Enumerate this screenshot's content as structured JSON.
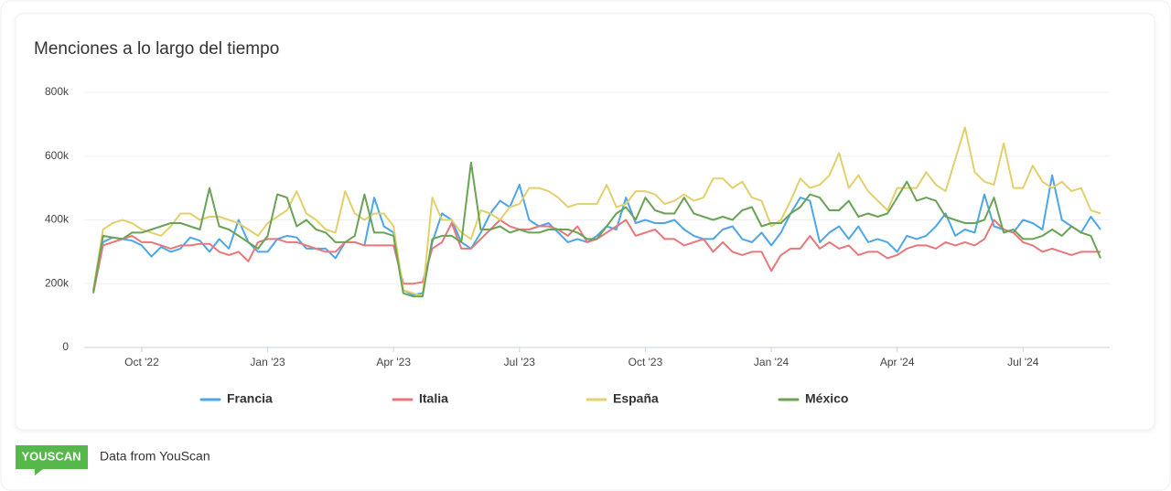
{
  "chart_data": {
    "type": "line",
    "title": "Menciones a lo largo del tiempo",
    "categories": [
      null,
      null,
      null,
      null,
      null,
      "Oct '22",
      null,
      null,
      null,
      null,
      null,
      null,
      null,
      null,
      null,
      null,
      null,
      null,
      "Jan '23",
      null,
      null,
      null,
      null,
      null,
      null,
      null,
      null,
      null,
      null,
      null,
      null,
      "Apr '23",
      null,
      null,
      null,
      null,
      null,
      null,
      null,
      null,
      null,
      null,
      null,
      null,
      "Jul '23",
      null,
      null,
      null,
      null,
      null,
      null,
      null,
      null,
      null,
      null,
      null,
      null,
      "Oct '23",
      null,
      null,
      null,
      null,
      null,
      null,
      null,
      null,
      null,
      null,
      null,
      null,
      "Jan '24",
      null,
      null,
      null,
      null,
      null,
      null,
      null,
      null,
      null,
      null,
      null,
      null,
      "Apr '24",
      null,
      null,
      null,
      null,
      null,
      null,
      null,
      null,
      null,
      null,
      null,
      null,
      "Jul '24",
      null,
      null,
      null,
      null,
      null,
      null,
      null,
      null
    ],
    "series": [
      {
        "name": "Francia",
        "color": "#4da6e8",
        "values": [
          170000,
          330000,
          345000,
          340000,
          335000,
          320000,
          285000,
          315000,
          300000,
          310000,
          345000,
          335000,
          300000,
          340000,
          310000,
          400000,
          330000,
          300000,
          300000,
          340000,
          350000,
          345000,
          310000,
          310000,
          310000,
          280000,
          330000,
          330000,
          320000,
          470000,
          380000,
          360000,
          180000,
          165000,
          170000,
          330000,
          420000,
          400000,
          330000,
          310000,
          360000,
          420000,
          460000,
          440000,
          510000,
          400000,
          380000,
          390000,
          360000,
          330000,
          340000,
          330000,
          350000,
          380000,
          370000,
          470000,
          390000,
          400000,
          390000,
          390000,
          400000,
          370000,
          350000,
          340000,
          340000,
          370000,
          380000,
          340000,
          330000,
          360000,
          320000,
          360000,
          420000,
          470000,
          460000,
          330000,
          360000,
          380000,
          340000,
          380000,
          330000,
          340000,
          330000,
          300000,
          350000,
          340000,
          350000,
          380000,
          420000,
          350000,
          370000,
          360000,
          480000,
          380000,
          370000,
          360000,
          400000,
          390000,
          370000,
          540000,
          400000,
          380000,
          360000,
          410000,
          370000
        ]
      },
      {
        "name": "Italia",
        "color": "#e8777a",
        "values": [
          170000,
          320000,
          330000,
          340000,
          350000,
          330000,
          330000,
          320000,
          310000,
          320000,
          320000,
          325000,
          325000,
          300000,
          290000,
          300000,
          270000,
          330000,
          340000,
          340000,
          330000,
          330000,
          320000,
          310000,
          300000,
          300000,
          330000,
          330000,
          320000,
          320000,
          320000,
          320000,
          200000,
          200000,
          205000,
          310000,
          330000,
          390000,
          310000,
          310000,
          340000,
          370000,
          400000,
          380000,
          370000,
          370000,
          380000,
          380000,
          370000,
          350000,
          380000,
          330000,
          340000,
          360000,
          380000,
          400000,
          350000,
          360000,
          370000,
          340000,
          340000,
          320000,
          330000,
          340000,
          300000,
          330000,
          300000,
          290000,
          300000,
          300000,
          240000,
          290000,
          310000,
          310000,
          350000,
          310000,
          330000,
          310000,
          320000,
          290000,
          300000,
          300000,
          280000,
          290000,
          310000,
          320000,
          320000,
          310000,
          330000,
          320000,
          330000,
          320000,
          340000,
          400000,
          370000,
          360000,
          330000,
          320000,
          300000,
          310000,
          300000,
          290000,
          300000,
          300000,
          300000
        ]
      },
      {
        "name": "España",
        "color": "#e2d06c",
        "values": [
          180000,
          370000,
          390000,
          400000,
          390000,
          370000,
          360000,
          350000,
          380000,
          420000,
          420000,
          400000,
          410000,
          410000,
          400000,
          390000,
          370000,
          350000,
          390000,
          410000,
          430000,
          490000,
          420000,
          400000,
          370000,
          360000,
          490000,
          420000,
          400000,
          420000,
          420000,
          380000,
          180000,
          170000,
          160000,
          470000,
          400000,
          400000,
          360000,
          340000,
          430000,
          420000,
          400000,
          440000,
          450000,
          500000,
          500000,
          490000,
          470000,
          440000,
          450000,
          450000,
          450000,
          510000,
          440000,
          450000,
          490000,
          490000,
          480000,
          450000,
          460000,
          480000,
          460000,
          470000,
          530000,
          530000,
          500000,
          520000,
          470000,
          460000,
          380000,
          400000,
          460000,
          530000,
          500000,
          510000,
          540000,
          610000,
          500000,
          540000,
          490000,
          460000,
          430000,
          500000,
          500000,
          500000,
          550000,
          510000,
          490000,
          590000,
          690000,
          550000,
          520000,
          510000,
          640000,
          500000,
          500000,
          570000,
          520000,
          500000,
          520000,
          490000,
          500000,
          430000,
          420000
        ]
      },
      {
        "name": "México",
        "color": "#6aa355",
        "values": [
          175000,
          350000,
          345000,
          340000,
          360000,
          360000,
          370000,
          380000,
          390000,
          390000,
          380000,
          370000,
          500000,
          380000,
          370000,
          350000,
          330000,
          310000,
          350000,
          480000,
          470000,
          380000,
          400000,
          370000,
          360000,
          330000,
          330000,
          350000,
          480000,
          360000,
          360000,
          350000,
          170000,
          160000,
          160000,
          340000,
          350000,
          350000,
          330000,
          580000,
          370000,
          370000,
          380000,
          360000,
          370000,
          360000,
          360000,
          370000,
          370000,
          370000,
          360000,
          340000,
          340000,
          380000,
          420000,
          440000,
          400000,
          470000,
          430000,
          420000,
          420000,
          470000,
          420000,
          410000,
          400000,
          410000,
          400000,
          430000,
          440000,
          380000,
          390000,
          390000,
          420000,
          440000,
          480000,
          470000,
          430000,
          430000,
          460000,
          410000,
          420000,
          410000,
          420000,
          470000,
          520000,
          460000,
          470000,
          460000,
          410000,
          400000,
          390000,
          390000,
          400000,
          470000,
          360000,
          370000,
          340000,
          340000,
          350000,
          370000,
          350000,
          380000,
          360000,
          350000,
          280000
        ]
      }
    ],
    "ylim": [
      0,
      800000
    ],
    "yticks": [
      0,
      {
        "value": 200000,
        "label": "200k"
      },
      {
        "value": 400000,
        "label": "400k"
      },
      {
        "value": 600000,
        "label": "600k"
      },
      {
        "value": 800000,
        "label": "800k"
      }
    ],
    "grid": true,
    "legend": "bottom"
  },
  "footer": {
    "logo": "YOUSCAN",
    "text": "Data from YouScan"
  }
}
